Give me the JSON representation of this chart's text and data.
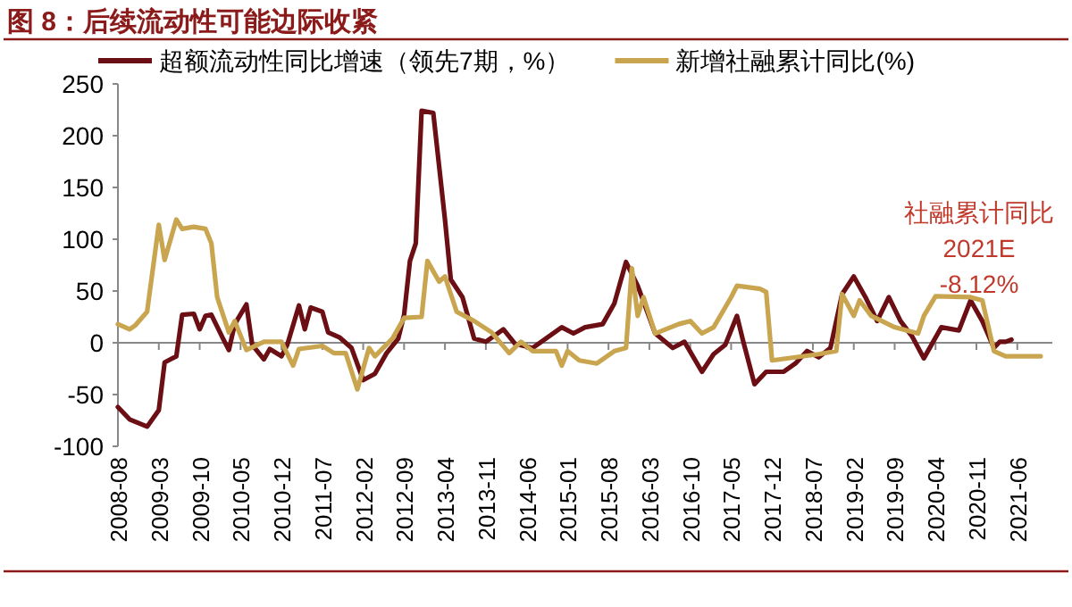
{
  "chart_data": {
    "type": "line",
    "title": "图 8：后续流动性可能边际收紧",
    "xlim": [
      "2008-08",
      "2021-12"
    ],
    "xticks": [
      "2008-08",
      "2009-03",
      "2009-10",
      "2010-05",
      "2010-12",
      "2011-07",
      "2012-02",
      "2012-09",
      "2013-04",
      "2013-11",
      "2014-06",
      "2015-01",
      "2015-08",
      "2016-03",
      "2016-10",
      "2017-05",
      "2017-12",
      "2018-07",
      "2019-02",
      "2019-09",
      "2020-04",
      "2020-11",
      "2021-06"
    ],
    "ylim": [
      -100,
      250
    ],
    "yticks": [
      -100,
      -50,
      0,
      50,
      100,
      150,
      200,
      250
    ],
    "legend": "top",
    "line_style": "solid",
    "marker": "none",
    "series": [
      {
        "name": "超额流动性同比增速（领先7期，%）",
        "color": "#6b0f14",
        "x": [
          "2008-08",
          "2008-10",
          "2009-01",
          "2009-03",
          "2009-04",
          "2009-05",
          "2009-06",
          "2009-07",
          "2009-09",
          "2009-10",
          "2009-11",
          "2009-12",
          "2010-02",
          "2010-03",
          "2010-04",
          "2010-06",
          "2010-07",
          "2010-09",
          "2010-10",
          "2010-12",
          "2011-01",
          "2011-03",
          "2011-04",
          "2011-05",
          "2011-07",
          "2011-08",
          "2011-10",
          "2011-12",
          "2012-02",
          "2012-04",
          "2012-06",
          "2012-08",
          "2012-09",
          "2012-10",
          "2012-11",
          "2012-12",
          "2013-02",
          "2013-04",
          "2013-05",
          "2013-07",
          "2013-09",
          "2013-11",
          "2014-01",
          "2014-02",
          "2014-04",
          "2014-07",
          "2014-12",
          "2015-02",
          "2015-04",
          "2015-07",
          "2015-09",
          "2015-11",
          "2016-01",
          "2016-04",
          "2016-07",
          "2016-09",
          "2016-12",
          "2017-02",
          "2017-04",
          "2017-06",
          "2017-07",
          "2017-09",
          "2017-11",
          "2018-02",
          "2018-04",
          "2018-06",
          "2018-08",
          "2018-10",
          "2018-12",
          "2019-02",
          "2019-04",
          "2019-06",
          "2019-08",
          "2019-10",
          "2019-12",
          "2020-02",
          "2020-05",
          "2020-08",
          "2020-10",
          "2020-12",
          "2021-02",
          "2021-03",
          "2021-04",
          "2021-05"
        ],
        "values": [
          -62,
          -74,
          -81,
          -65,
          -19,
          -16,
          -13,
          27,
          28,
          13,
          26,
          27,
          4,
          -7,
          18,
          37,
          -2,
          -16,
          -6,
          -13,
          -2,
          36,
          13,
          34,
          30,
          10,
          5,
          -5,
          -36,
          -30,
          -10,
          4,
          27,
          79,
          96,
          224,
          222,
          119,
          61,
          44,
          4,
          1,
          9,
          13,
          -1,
          -5,
          15,
          9,
          15,
          18,
          38,
          78,
          55,
          9,
          -5,
          1,
          -28,
          -11,
          -2,
          26,
          3,
          -40,
          -28,
          -28,
          -20,
          -8,
          -14,
          -5,
          47,
          64,
          44,
          21,
          44,
          21,
          6,
          -15,
          15,
          12,
          41,
          21,
          -5,
          1,
          1,
          3
        ]
      },
      {
        "name": "新增社融累计同比(%)",
        "color": "#c9a54f",
        "x": [
          "2008-08",
          "2008-10",
          "2008-11",
          "2009-01",
          "2009-03",
          "2009-04",
          "2009-06",
          "2009-07",
          "2009-09",
          "2009-11",
          "2009-12",
          "2010-01",
          "2010-03",
          "2010-04",
          "2010-06",
          "2010-09",
          "2010-12",
          "2011-02",
          "2011-03",
          "2011-07",
          "2011-09",
          "2011-11",
          "2012-01",
          "2012-03",
          "2012-04",
          "2012-07",
          "2012-09",
          "2012-12",
          "2013-01",
          "2013-03",
          "2013-04",
          "2013-06",
          "2013-09",
          "2013-12",
          "2014-03",
          "2014-05",
          "2014-07",
          "2014-11",
          "2014-12",
          "2015-01",
          "2015-03",
          "2015-06",
          "2015-09",
          "2015-11",
          "2015-12",
          "2016-01",
          "2016-02",
          "2016-04",
          "2016-08",
          "2016-10",
          "2016-12",
          "2017-02",
          "2017-05",
          "2017-06",
          "2017-10",
          "2017-11",
          "2017-12",
          "2018-04",
          "2018-08",
          "2018-11",
          "2018-12",
          "2019-02",
          "2019-03",
          "2019-05",
          "2019-09",
          "2020-01",
          "2020-02",
          "2020-04",
          "2020-10",
          "2020-12",
          "2021-02",
          "2021-04",
          "2021-10"
        ],
        "values": [
          18,
          13,
          17,
          30,
          114,
          80,
          119,
          110,
          112,
          110,
          96,
          44,
          10,
          21,
          -7,
          1,
          1,
          -22,
          -6,
          -3,
          -10,
          -10,
          -45,
          -5,
          -13,
          4,
          24,
          25,
          79,
          59,
          64,
          30,
          21,
          10,
          -10,
          1,
          -8,
          -8,
          -22,
          -8,
          -17,
          -20,
          -8,
          -5,
          72,
          26,
          44,
          9,
          18,
          21,
          9,
          15,
          44,
          55,
          52,
          49,
          -17,
          -14,
          -11,
          -8,
          47,
          26,
          41,
          26,
          15,
          9,
          26,
          45,
          44,
          41,
          -8,
          -13,
          -13
        ]
      }
    ],
    "annotations": [
      "社融累计同比",
      "2021E",
      "-8.12%"
    ]
  }
}
